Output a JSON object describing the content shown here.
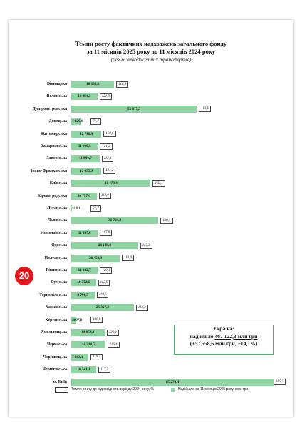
{
  "title_line1": "Темпи росту фактичних надходжень загального фонду",
  "title_line2": "за 11 місяців 2025 року до 11 місяців 2024 року",
  "subtitle": "(без міжбюджетних трансфертів)",
  "badge": "20",
  "ukraine": {
    "line1": "Україна:",
    "line2_prefix": "надійшло ",
    "line2_amount": "467 122,3 млн грн",
    "line3": "(+57 558,6 млн грн, +14,1%)"
  },
  "legend": {
    "rate_label": "Темпи росту до відповідного періоду 2024 року, %",
    "bar_label": "Надійшло за 11 місяців  2025 року, млн грн"
  },
  "colors": {
    "bar": "#8fd3a2",
    "badge": "#e8141c",
    "ukraine_border": "#4caf6a"
  },
  "chart_data": {
    "type": "bar",
    "orientation": "horizontal",
    "title": "Темпи росту фактичних надходжень загального фонду за 11 місяців 2025 року до 11 місяців 2024 року",
    "subtitle": "(без міжбюджетних трансфертів)",
    "categories": [
      "Вінницька",
      "Волинська",
      "Дніпропетровська",
      "Донецька",
      "Житомирська",
      "Закарпатська",
      "Запорізька",
      "Івано-Франківська",
      "Київська",
      "Кіровоградська",
      "Луганська",
      "Львівська",
      "Миколаївська",
      "Одеська",
      "Полтавська",
      "Рівненська",
      "Сумська",
      "Тернопільська",
      "Харківська",
      "Херсонська",
      "Хмельницька",
      "Черкаська",
      "Чернівецька",
      "Чернігівська",
      "м. Київ"
    ],
    "series": [
      {
        "name": "Надійшло за 11 місяців  2025 року, млн грн",
        "values": [
          18132.6,
          10994.3,
          52877.5,
          4229.8,
          12718.9,
          11200.5,
          11890.7,
          12655.3,
          33473.4,
          10757.6,
          414.4,
          36721.9,
          11197.9,
          28129.0,
          20450.9,
          11182.7,
          10372.6,
          9790.5,
          26357.2,
          2097.8,
          14054.4,
          14314.5,
          7283.1,
          10541.1,
          85273.4
        ],
        "labels": [
          "18 132,6",
          "10 994,3",
          "52 877,5",
          "4 229,8",
          "12 718,9",
          "11 200,5",
          "11 890,7",
          "12 655,3",
          "33 473,4",
          "10 757,6",
          "414,4",
          "36 721,9",
          "11 197,9",
          "28 129,0",
          "20 450,9",
          "11 182,7",
          "10 372,6",
          "9 790,5",
          "26 357,2",
          "2097,8",
          "14 054,4",
          "14 314,5",
          "7 283,1",
          "10 541,1",
          "85 273,4"
        ]
      },
      {
        "name": "Темпи росту до відповідного періоду 2024 року, %",
        "values": [
          116.9,
          121.8,
          113.6,
          71.7,
          120.6,
          121.2,
          112.1,
          121.2,
          122.1,
          112.9,
          91.7,
          120.5,
          117.8,
          115.3,
          113.0,
          120.1,
          112.9,
          118.6,
          113.3,
          106.0,
          120.1,
          116.4,
          119.7,
          117.7,
          105.5
        ],
        "labels": [
          "116,9",
          "121,8",
          "113,6",
          "71,7",
          "120,6",
          "121,2",
          "112,1",
          "121,2",
          "122,1",
          "112,9",
          "91,7",
          "120,5",
          "117,8",
          "115,3",
          "113,0",
          "120,1",
          "112,9",
          "118,6",
          "113,3",
          "106,0",
          "120,1",
          "116,4",
          "119,7",
          "117,7",
          "105,5"
        ]
      }
    ],
    "xlim": [
      0,
      85273.4
    ],
    "grid": false,
    "legend_position": "bottom"
  }
}
